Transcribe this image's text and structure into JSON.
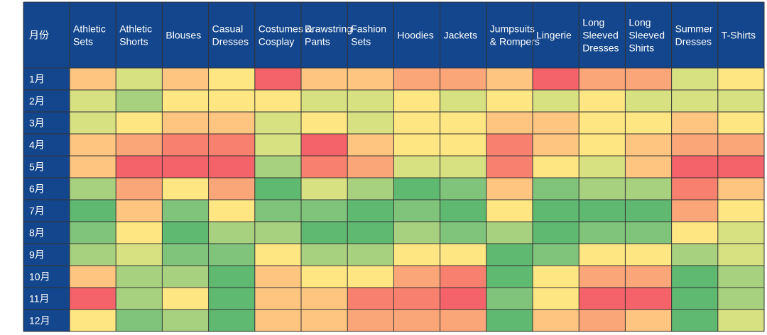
{
  "chart_data": {
    "type": "heatmap",
    "corner_label": "月份",
    "columns": [
      "Athletic Sets",
      "Athletic Shorts",
      "Blouses",
      "Casual Dresses",
      "Costumes & Cosplay",
      "Drawstring Pants",
      "Fashion Sets",
      "Hoodies",
      "Jackets",
      "Jumpsuits & Rompers",
      "Lingerie",
      "Long Sleeved Dresses",
      "Long Sleeved Shirts",
      "Summer Dresses",
      "T-Shirts"
    ],
    "rows": [
      "1月",
      "2月",
      "3月",
      "4月",
      "5月",
      "6月",
      "7月",
      "8月",
      "9月",
      "10月",
      "11月",
      "12月"
    ],
    "values": [
      [
        4,
        6,
        4,
        5,
        1,
        4,
        4,
        3,
        3,
        4,
        1,
        3,
        3,
        6,
        5
      ],
      [
        6,
        7,
        5,
        5,
        5,
        6,
        6,
        5,
        6,
        5,
        6,
        5,
        6,
        6,
        6
      ],
      [
        6,
        5,
        4,
        4,
        6,
        5,
        6,
        5,
        5,
        4,
        4,
        5,
        5,
        4,
        5
      ],
      [
        4,
        3,
        2,
        2,
        6,
        1,
        4,
        5,
        5,
        2,
        4,
        5,
        4,
        3,
        3
      ],
      [
        4,
        1,
        1,
        1,
        7,
        2,
        3,
        6,
        6,
        2,
        5,
        6,
        4,
        1,
        1
      ],
      [
        7,
        3,
        5,
        3,
        9,
        6,
        7,
        9,
        8,
        4,
        8,
        7,
        7,
        2,
        4
      ],
      [
        9,
        4,
        8,
        5,
        8,
        8,
        9,
        8,
        9,
        5,
        9,
        9,
        9,
        3,
        5
      ],
      [
        8,
        5,
        9,
        7,
        7,
        9,
        9,
        7,
        8,
        7,
        9,
        8,
        8,
        5,
        6
      ],
      [
        7,
        6,
        8,
        8,
        5,
        7,
        7,
        5,
        5,
        9,
        8,
        5,
        5,
        7,
        6
      ],
      [
        4,
        7,
        7,
        9,
        4,
        5,
        5,
        3,
        2,
        9,
        5,
        3,
        3,
        9,
        7
      ],
      [
        1,
        7,
        5,
        9,
        4,
        4,
        2,
        2,
        1,
        8,
        5,
        1,
        1,
        9,
        7
      ],
      [
        5,
        8,
        7,
        9,
        4,
        4,
        3,
        3,
        3,
        9,
        4,
        3,
        4,
        9,
        6
      ]
    ],
    "value_range": [
      1,
      9
    ],
    "palette": [
      "#f4626a",
      "#f8806e",
      "#fba679",
      "#fdc580",
      "#fee682",
      "#d8e182",
      "#a8d17f",
      "#80c47c",
      "#5fb971"
    ],
    "header_color": "#13468c",
    "label_text_color": "#ffffff",
    "grid": true
  }
}
